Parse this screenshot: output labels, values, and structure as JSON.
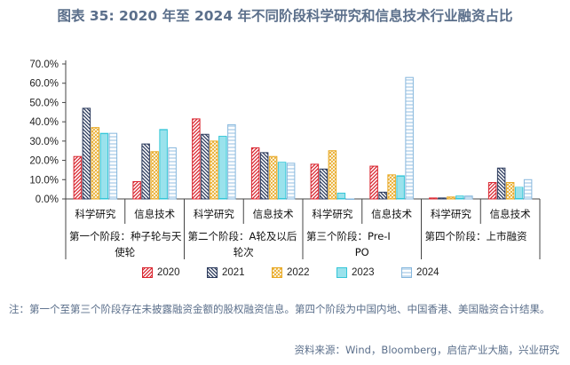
{
  "title": "图表 35: 2020 年至 2024 年不同阶段科学研究和信息技术行业融资占比",
  "note": "注：第一个至第三个阶段存在未披露融资金额的股权融资信息。第四个阶段为中国内地、中国香港、美国融资合计结果。",
  "source": "资料来源：Wind，Bloomberg，启信产业大脑，兴业研究",
  "chart_data": {
    "type": "bar",
    "title": "图表 35: 2020 年至 2024 年不同阶段科学研究和信息技术行业融资占比",
    "ylim": [
      0,
      70
    ],
    "yticks": [
      "0.0%",
      "10.0%",
      "20.0%",
      "30.0%",
      "40.0%",
      "50.0%",
      "60.0%",
      "70.0%"
    ],
    "categories": [
      "科学研究",
      "信息技术",
      "科学研究",
      "信息技术",
      "科学研究",
      "信息技术",
      "科学研究",
      "信息技术"
    ],
    "groups": [
      "第一个阶段：种子轮与天使轮",
      "第二个阶段：A轮及以后轮次",
      "第三个阶段：Pre-IPO",
      "第四个阶段：上市融资"
    ],
    "legend_position": "bottom",
    "series": [
      {
        "name": "2020",
        "color": "#d9252f",
        "pattern": "diag-right",
        "values": [
          22,
          9,
          41.5,
          26.5,
          18,
          17,
          0.5,
          8.5
        ]
      },
      {
        "name": "2021",
        "color": "#2b3a5c",
        "pattern": "diag-left",
        "values": [
          47,
          28.5,
          33.5,
          24,
          15.5,
          3.5,
          0.5,
          16
        ]
      },
      {
        "name": "2022",
        "color": "#e8a822",
        "pattern": "cross",
        "values": [
          37,
          24.5,
          30,
          22,
          25,
          12.5,
          1,
          8.5
        ]
      },
      {
        "name": "2023",
        "color": "#35c6d8",
        "pattern": "horiz",
        "values": [
          34,
          36,
          32.5,
          19,
          3,
          12,
          1.5,
          6
        ]
      },
      {
        "name": "2024",
        "color": "#86b7dd",
        "pattern": "horiz-thin",
        "values": [
          34,
          26.5,
          38.5,
          18.5,
          0,
          63,
          1.5,
          10
        ]
      }
    ]
  }
}
